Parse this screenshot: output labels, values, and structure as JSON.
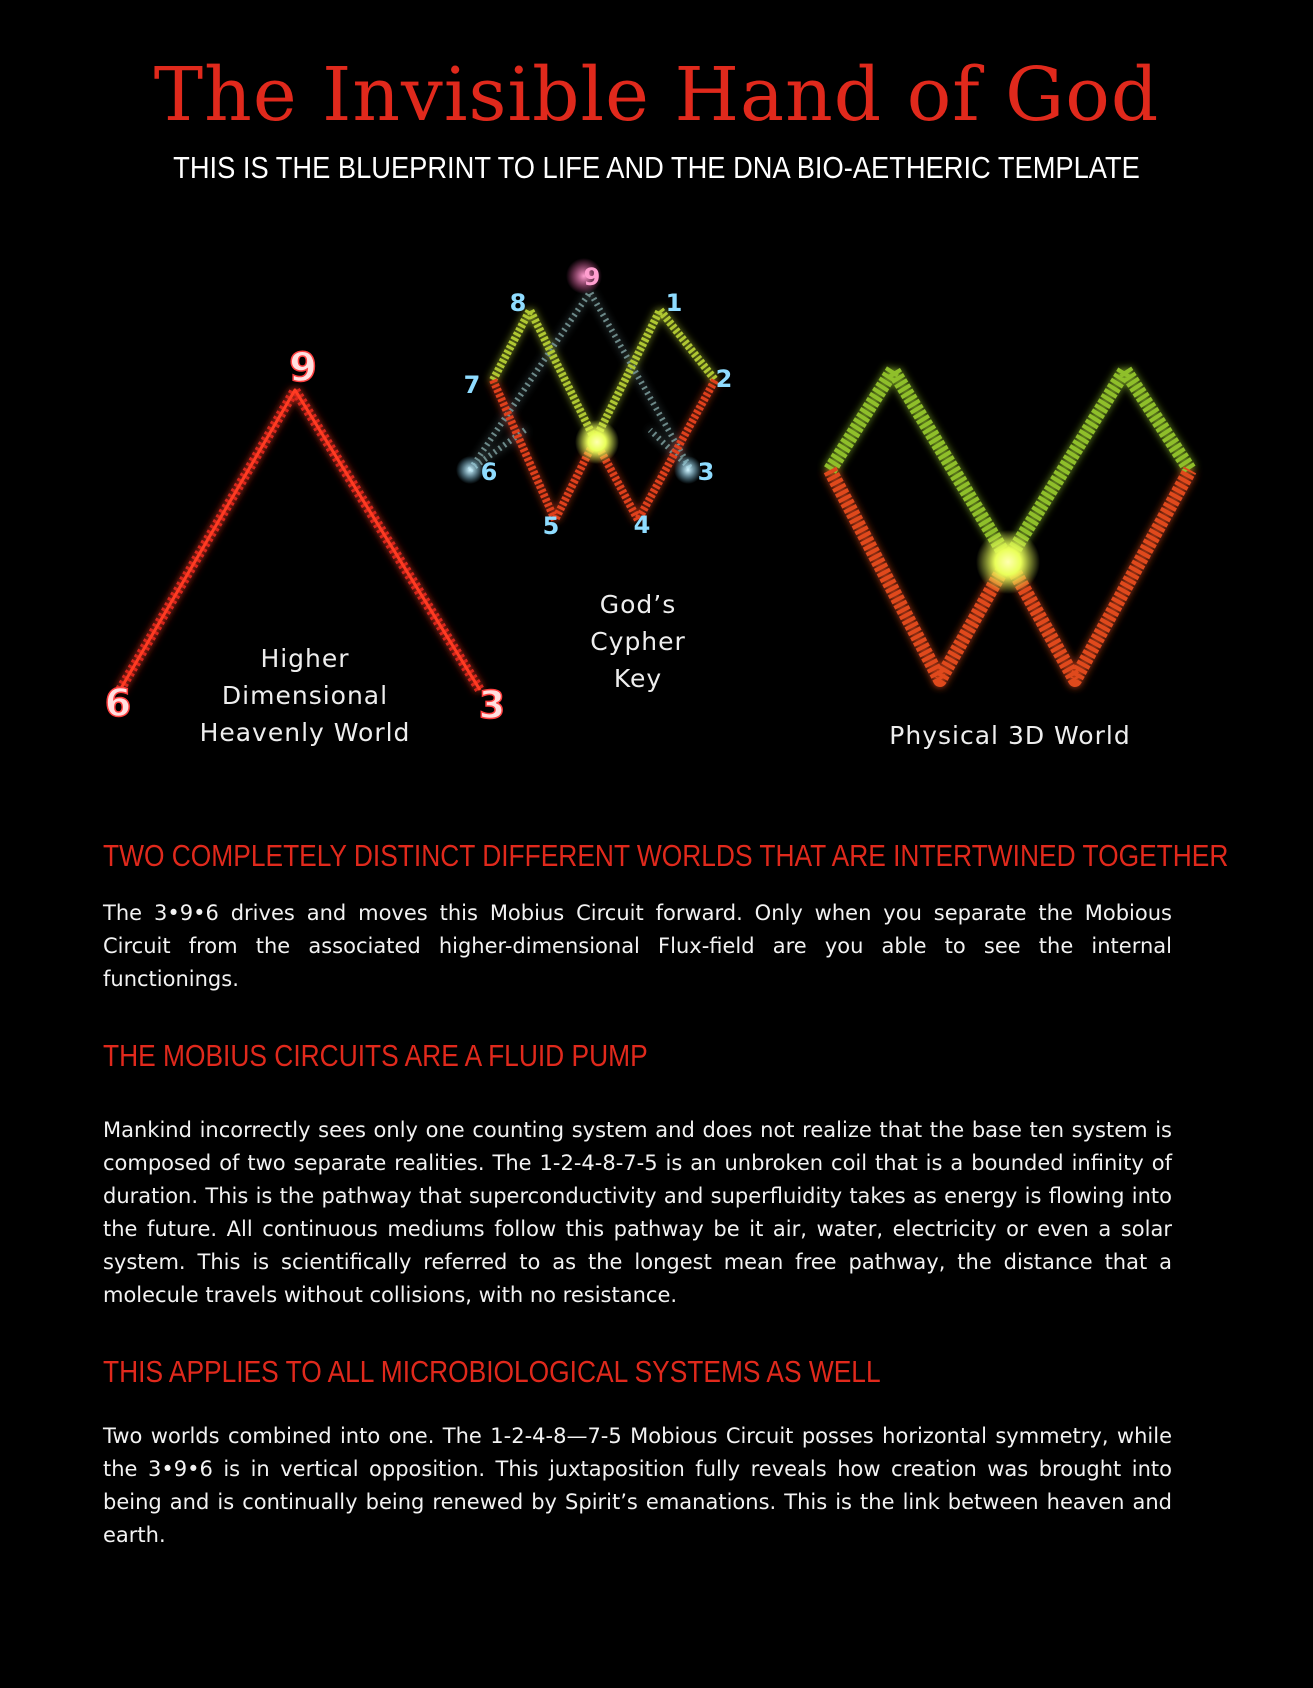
{
  "title": "The Invisible Hand of God",
  "subtitle": "THIS IS THE BLUEPRINT TO LIFE AND THE DNA BIO-AETHERIC  TEMPLATE",
  "figure": {
    "left": {
      "label": "Higher Dimensional Heavenly World",
      "label_lines": [
        "Higher",
        "Dimensional",
        "Heavenly World"
      ],
      "numbers": {
        "top": "9",
        "bottom_left": "6",
        "bottom_right": "3"
      }
    },
    "center": {
      "label_lines": [
        "God’s",
        "Cypher",
        "Key"
      ],
      "numbers": {
        "top": "9",
        "top_left": "8",
        "top_right": "1",
        "left": "7",
        "right": "2",
        "far_left": "6",
        "far_right": "3",
        "bottom_left": "5",
        "bottom_right": "4"
      }
    },
    "right": {
      "label": "Physical 3D World"
    },
    "colors": {
      "red": "#e0291c",
      "green": "#9acd32",
      "cyan": "#7fd8ff",
      "pink": "#ff5fb0",
      "glow": "#eaff5a"
    }
  },
  "sections": [
    {
      "heading": "TWO COMPLETELY DISTINCT DIFFERENT WORLDS THAT ARE INTERTWINED TOGETHER",
      "body": "The 3•9•6 drives and moves this Mobius Circuit forward. Only when you separate the Mobious Circuit from the associated higher-dimensional Flux-field are you able to see the internal functionings."
    },
    {
      "heading": "THE MOBIUS CIRCUITS ARE A FLUID PUMP",
      "body": "Mankind incorrectly sees only one counting system and does not realize that the base ten system is composed of two separate realities. The 1-2-4-8-7-5 is an unbroken coil that is a bounded infinity of duration. This is the pathway that superconductivity and superfluidity takes as energy is flowing into the future. All continuous mediums follow this pathway be it air, water, electricity or even a solar system. This is scientifically referred to as the longest mean free pathway, the distance that a molecule travels without collisions, with no resistance."
    },
    {
      "heading": "THIS APPLIES TO ALL MICROBIOLOGICAL SYSTEMS AS WELL",
      "body": "Two worlds combined into one.  The 1-2-4-8—7-5 Mobious Circuit posses horizontal symmetry, while the 3•9•6 is in vertical opposition. This juxtaposition fully reveals how creation was brought into being and is continually being renewed by Spirit’s emanations. This is the link between heaven and earth."
    }
  ]
}
